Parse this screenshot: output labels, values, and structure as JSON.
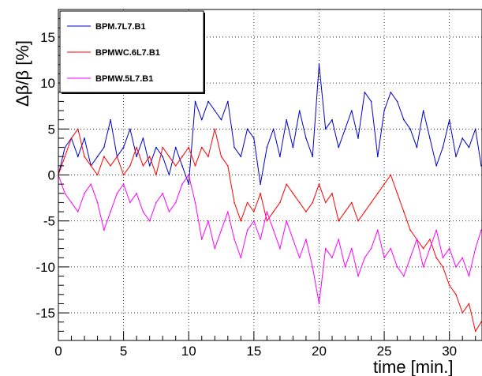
{
  "chart_data": {
    "type": "line",
    "title": "",
    "xlabel": "time [min.]",
    "ylabel": "Δβ/β [%]",
    "xlim": [
      0,
      32.5
    ],
    "ylim": [
      -18,
      18
    ],
    "grid": true,
    "legend_position": "top-left",
    "x_ticks": [
      {
        "value": 0,
        "label": "0"
      },
      {
        "value": 5,
        "label": "5"
      },
      {
        "value": 10,
        "label": "10"
      },
      {
        "value": 15,
        "label": "15"
      },
      {
        "value": 20,
        "label": "20"
      },
      {
        "value": 25,
        "label": "25"
      },
      {
        "value": 30,
        "label": "30"
      }
    ],
    "y_ticks": [
      {
        "value": -15,
        "label": "-15"
      },
      {
        "value": -10,
        "label": "-10"
      },
      {
        "value": -5,
        "label": "-5"
      },
      {
        "value": 0,
        "label": "0"
      },
      {
        "value": 5,
        "label": "5"
      },
      {
        "value": 10,
        "label": "10"
      },
      {
        "value": 15,
        "label": "15"
      }
    ],
    "x": [
      0,
      0.5,
      1,
      1.5,
      2,
      2.5,
      3,
      3.5,
      4,
      4.5,
      5,
      5.5,
      6,
      6.5,
      7,
      7.5,
      8,
      8.5,
      9,
      9.5,
      10,
      10.5,
      11,
      11.5,
      12,
      12.5,
      13,
      13.5,
      14,
      14.5,
      15,
      15.5,
      16,
      16.5,
      17,
      17.5,
      18,
      18.5,
      19,
      19.5,
      20,
      20.5,
      21,
      21.5,
      22,
      22.5,
      23,
      23.5,
      24,
      24.5,
      25,
      25.5,
      26,
      26.5,
      27,
      27.5,
      28,
      28.5,
      29,
      29.5,
      30,
      30.5,
      31,
      31.5,
      32,
      32.5
    ],
    "series": [
      {
        "name": "BPM.7L7.B1",
        "color": "#0000cc",
        "values": [
          0,
          3,
          4,
          2,
          4,
          1,
          2,
          3,
          6,
          2,
          3,
          5,
          2,
          4,
          1,
          3,
          2,
          0,
          3,
          1,
          -1,
          8,
          6,
          8,
          7,
          6,
          8,
          3,
          2,
          5,
          4,
          -1,
          3,
          5,
          2,
          6,
          3,
          7,
          4,
          2,
          12,
          5,
          6,
          3,
          5,
          7,
          4,
          9,
          8,
          2,
          7,
          9,
          8,
          6,
          5,
          3,
          7,
          4,
          1,
          3,
          6,
          2,
          4,
          3,
          5,
          1
        ]
      },
      {
        "name": "BPMWC.6L7.B1",
        "color": "#ff0000",
        "values": [
          0,
          2,
          4,
          5,
          2,
          1,
          0,
          2,
          1,
          2,
          0,
          1,
          3,
          1,
          2,
          0,
          3,
          2,
          1,
          2,
          3,
          1,
          3,
          2,
          5,
          2,
          1,
          -3,
          -5,
          -3,
          -4,
          -2,
          -5,
          -4,
          -3,
          -1,
          -2,
          -3,
          -4,
          -3,
          -1,
          -3,
          -2,
          -5,
          -4,
          -3,
          -5,
          -4,
          -3,
          -2,
          -1,
          0,
          -2,
          -4,
          -6,
          -7,
          -8,
          -7,
          -9,
          -10,
          -12,
          -13,
          -15,
          -14,
          -17,
          -16
        ]
      },
      {
        "name": "BPMW.5L7.B1",
        "color": "#ff00ff",
        "values": [
          0,
          -2,
          -3,
          -4,
          -2,
          -1,
          -3,
          -6,
          -4,
          -2,
          -1,
          -3,
          -2,
          -4,
          -5,
          -3,
          -2,
          -4,
          -3,
          -1,
          0,
          -3,
          -7,
          -5,
          -8,
          -6,
          -4,
          -7,
          -9,
          -6,
          -5,
          -7,
          -4,
          -6,
          -8,
          -5,
          -7,
          -9,
          -7,
          -10,
          -14,
          -8,
          -9,
          -7,
          -10,
          -8,
          -11,
          -9,
          -8,
          -6,
          -9,
          -8,
          -10,
          -11,
          -9,
          -7,
          -10,
          -8,
          -6,
          -9,
          -8,
          -10,
          -9,
          -11,
          -8,
          -6
        ]
      }
    ]
  }
}
